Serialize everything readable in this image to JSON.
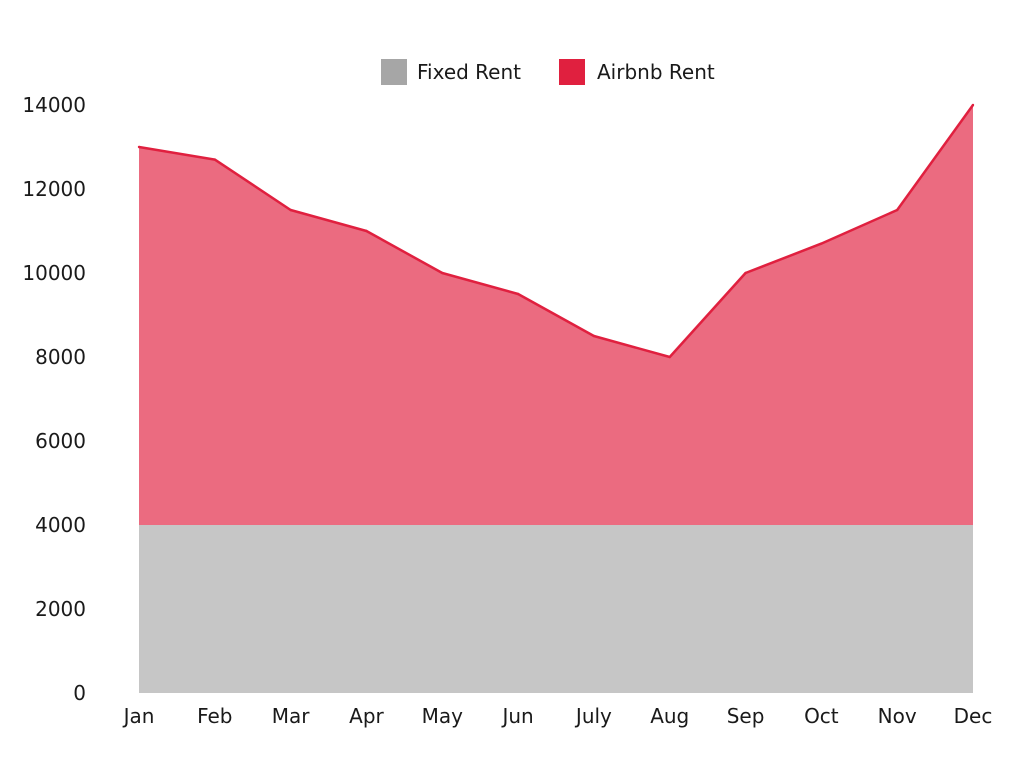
{
  "chart_data": {
    "type": "area",
    "categories": [
      "Jan",
      "Feb",
      "Mar",
      "Apr",
      "May",
      "Jun",
      "July",
      "Aug",
      "Sep",
      "Oct",
      "Nov",
      "Dec"
    ],
    "series": [
      {
        "name": "Fixed Rent",
        "color": "#a6a6a6",
        "fill": "#c6c6c6",
        "values": [
          4000,
          4000,
          4000,
          4000,
          4000,
          4000,
          4000,
          4000,
          4000,
          4000,
          4000,
          4000
        ]
      },
      {
        "name": "Airbnb Rent",
        "color": "#e0203f",
        "fill": "#eb6b80",
        "values": [
          13000,
          12700,
          11500,
          11000,
          10000,
          9500,
          8500,
          8000,
          10000,
          10700,
          11500,
          14000
        ]
      }
    ],
    "y_ticks": [
      "0",
      "2000",
      "4000",
      "6000",
      "8000",
      "10000",
      "12000",
      "14000"
    ],
    "ylim": [
      0,
      14000
    ],
    "title": "",
    "xlabel": "",
    "ylabel": "",
    "grid": false,
    "legend_position": "top-center"
  }
}
